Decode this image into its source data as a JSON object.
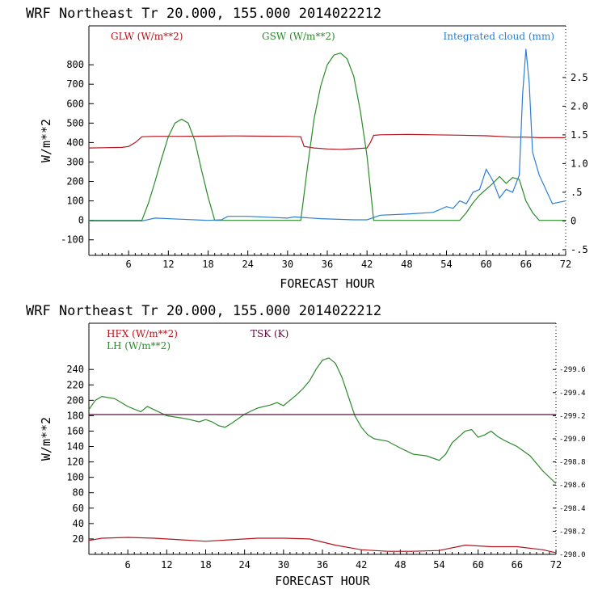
{
  "chart_data": [
    {
      "type": "line",
      "title": "WRF  Northeast Tr  20.000, 155.000  2014022212",
      "xlabel": "FORECAST HOUR",
      "ylabel": "W/m**2",
      "xlim": [
        0,
        72
      ],
      "ylim": [
        -180,
        1000
      ],
      "x_ticks": [
        6,
        12,
        18,
        24,
        30,
        36,
        42,
        48,
        54,
        60,
        66,
        72
      ],
      "y_ticks": [
        -100,
        0,
        100,
        200,
        300,
        400,
        500,
        600,
        700,
        800
      ],
      "y2lim": [
        -0.6,
        3.4
      ],
      "y2_ticks": [
        -0.5,
        0,
        0.5,
        1.0,
        1.5,
        2.0,
        2.5
      ],
      "y2_tick_labels": [
        "-.5",
        "0",
        ".5",
        "1.0",
        "1.5",
        "2.0",
        "2.5"
      ],
      "grid": false,
      "series": [
        {
          "name": "GLW (W/m**2)",
          "axis": "left",
          "color": "#b4141e",
          "x": [
            0,
            5,
            6,
            7,
            8,
            10,
            14,
            18,
            22,
            26,
            30,
            32,
            32.5,
            34,
            36,
            38,
            40,
            42,
            42.5,
            43,
            44,
            48,
            52,
            56,
            60,
            64,
            66,
            68,
            72
          ],
          "y": [
            372,
            375,
            380,
            400,
            430,
            432,
            432,
            433,
            434,
            433,
            432,
            430,
            380,
            372,
            367,
            365,
            368,
            372,
            400,
            437,
            440,
            442,
            440,
            438,
            435,
            428,
            428,
            425,
            425
          ]
        },
        {
          "name": "GSW (W/m**2)",
          "axis": "left",
          "color": "#2a8a2a",
          "x": [
            0,
            8,
            9,
            10,
            11,
            12,
            13,
            14,
            15,
            16,
            17,
            18,
            19,
            32,
            33,
            34,
            35,
            36,
            37,
            38,
            39,
            40,
            41,
            42,
            43,
            56,
            57,
            58,
            59,
            60,
            61,
            62,
            63,
            64,
            65,
            66,
            67,
            68,
            72
          ],
          "y": [
            0,
            0,
            90,
            200,
            320,
            430,
            500,
            520,
            500,
            410,
            260,
            120,
            0,
            0,
            270,
            520,
            690,
            800,
            850,
            860,
            830,
            740,
            560,
            330,
            0,
            0,
            40,
            90,
            130,
            160,
            190,
            225,
            190,
            220,
            210,
            100,
            40,
            0,
            0
          ]
        },
        {
          "name": "Integrated cloud (mm)",
          "axis": "right",
          "color": "#2c7fd4",
          "x": [
            0,
            8,
            10,
            14,
            18,
            20,
            21,
            24,
            30,
            31,
            35,
            40,
            42,
            44,
            48,
            52,
            54,
            55,
            56,
            57,
            58,
            59,
            60,
            61,
            62,
            63,
            64,
            65,
            65.5,
            66,
            66.5,
            67,
            68,
            70,
            72
          ],
          "y": [
            0,
            0,
            0.05,
            0.03,
            0.01,
            0.02,
            0.08,
            0.08,
            0.05,
            0.07,
            0.04,
            0.02,
            0.02,
            0.1,
            0.12,
            0.15,
            0.25,
            0.22,
            0.35,
            0.3,
            0.5,
            0.55,
            0.9,
            0.7,
            0.4,
            0.55,
            0.5,
            0.8,
            2.2,
            3.0,
            2.4,
            1.2,
            0.8,
            0.3,
            0.35
          ]
        }
      ]
    },
    {
      "type": "line",
      "title": "WRF  Northeast Tr  20.000, 155.000  2014022212",
      "xlabel": "FORECAST HOUR",
      "ylabel": "W/m**2",
      "xlim": [
        0,
        72
      ],
      "ylim": [
        0,
        300
      ],
      "x_ticks": [
        6,
        12,
        18,
        24,
        30,
        36,
        42,
        48,
        54,
        60,
        66,
        72
      ],
      "y_ticks": [
        20,
        40,
        60,
        80,
        100,
        120,
        140,
        160,
        180,
        200,
        220,
        240
      ],
      "y2lim": [
        298.0,
        300.0
      ],
      "y2_ticks": [
        298.0,
        298.2,
        298.4,
        298.6,
        298.8,
        299.0,
        299.2,
        299.4,
        299.6
      ],
      "y2_tick_labels": [
        "298.0",
        "298.2",
        "298.4",
        "298.6",
        "298.8",
        "299.0",
        "299.2",
        "299.4",
        "299.6"
      ],
      "grid": false,
      "series": [
        {
          "name": "HFX (W/m**2)",
          "axis": "left",
          "color": "#b4141e",
          "x": [
            0,
            2,
            6,
            10,
            14,
            18,
            22,
            26,
            30,
            34,
            38,
            42,
            46,
            50,
            54,
            58,
            62,
            66,
            70,
            72
          ],
          "y": [
            18,
            21,
            22,
            21,
            19,
            17,
            19,
            21,
            21,
            20,
            12,
            6,
            4,
            4,
            5,
            12,
            10,
            10,
            6,
            2
          ]
        },
        {
          "name": "LH  (W/m**2)",
          "axis": "left",
          "color": "#2a8a2a",
          "x": [
            0,
            1,
            2,
            4,
            6,
            8,
            9,
            10,
            12,
            15,
            17,
            18,
            19,
            20,
            21,
            22,
            24,
            26,
            28,
            29,
            30,
            31,
            32,
            33,
            34,
            35,
            36,
            37,
            38,
            39,
            40,
            41,
            42,
            43,
            44,
            46,
            48,
            50,
            52,
            54,
            55,
            56,
            58,
            59,
            60,
            61,
            62,
            63,
            64,
            66,
            68,
            70,
            72
          ],
          "y": [
            188,
            200,
            205,
            202,
            192,
            185,
            192,
            188,
            180,
            176,
            172,
            175,
            172,
            167,
            165,
            170,
            182,
            190,
            194,
            197,
            193,
            200,
            207,
            215,
            225,
            240,
            252,
            255,
            248,
            230,
            205,
            180,
            165,
            155,
            150,
            147,
            138,
            130,
            128,
            122,
            130,
            145,
            160,
            162,
            152,
            155,
            160,
            153,
            148,
            140,
            128,
            108,
            92
          ]
        },
        {
          "name": "TSK (K)",
          "axis": "right",
          "color": "#5a1040",
          "x": [
            0,
            72
          ],
          "y": [
            299.21,
            299.21
          ]
        }
      ]
    }
  ]
}
